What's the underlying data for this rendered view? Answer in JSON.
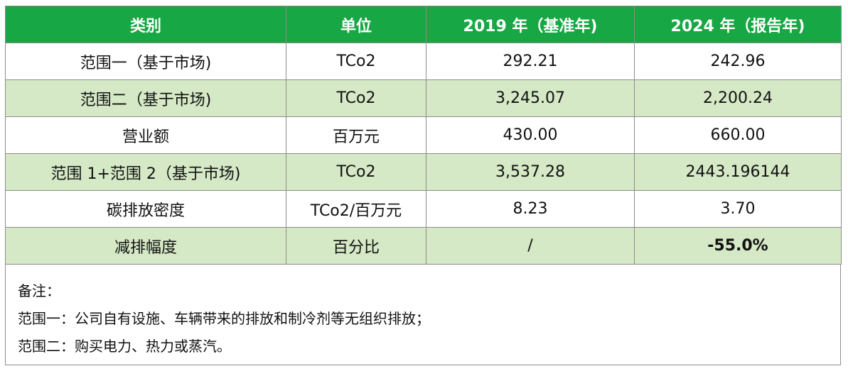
{
  "colors": {
    "header_bg": "#17A744",
    "band_bg": "#D6E9C6",
    "plain_bg": "#FFFFFF"
  },
  "table": {
    "headers": [
      "类别",
      "单位",
      "2019 年（基准年)",
      "2024 年（报告年)"
    ],
    "rows": [
      {
        "cells": [
          "范围一（基于市场)",
          "TCo2",
          "292.21",
          "242.96"
        ],
        "shaded": false
      },
      {
        "cells": [
          "范围二（基于市场)",
          "TCo2",
          "3,245.07",
          "2,200.24"
        ],
        "shaded": true
      },
      {
        "cells": [
          "营业额",
          "百万元",
          "430.00",
          "660.00"
        ],
        "shaded": false
      },
      {
        "cells": [
          "范围 1+范围 2（基于市场)",
          "TCo2",
          "3,537.28",
          "2443.196144"
        ],
        "shaded": true
      },
      {
        "cells": [
          "碳排放密度",
          "TCo2/百万元",
          "8.23",
          "3.70"
        ],
        "shaded": false
      },
      {
        "cells": [
          "减排幅度",
          "百分比",
          "/",
          "-55.0%"
        ],
        "shaded": true,
        "bold_last": true
      }
    ]
  },
  "notes": {
    "title": "备注：",
    "scope1": "范围一：公司自有设施、车辆带来的排放和制冷剂等无组织排放；",
    "scope2": "范围二：购买电力、热力或蒸汽。"
  }
}
